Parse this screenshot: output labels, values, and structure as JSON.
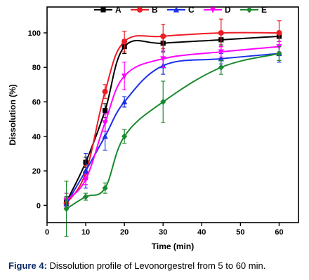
{
  "chart_data": {
    "type": "line",
    "xlabel": "Time (min)",
    "ylabel": "Dissolution (%)",
    "xlim": [
      0,
      65
    ],
    "ylim": [
      -10,
      115
    ],
    "xticks": [
      0,
      10,
      20,
      30,
      40,
      50,
      60
    ],
    "yticks": [
      0,
      20,
      40,
      60,
      80,
      100
    ],
    "x": [
      5,
      10,
      15,
      20,
      30,
      45,
      60
    ],
    "legend_position": "top",
    "series": [
      {
        "name": "A",
        "color": "#000000",
        "marker": "square",
        "values": [
          2,
          25,
          55,
          92,
          94,
          96,
          98
        ],
        "errors": [
          3,
          3,
          4,
          4,
          5,
          3,
          3
        ]
      },
      {
        "name": "B",
        "color": "#ee1c25",
        "marker": "circle",
        "values": [
          1,
          19,
          66,
          95,
          98,
          100,
          100
        ],
        "errors": [
          3,
          4,
          4,
          6,
          7,
          8,
          7
        ]
      },
      {
        "name": "C",
        "color": "#1a2fe8",
        "marker": "triangle",
        "values": [
          1,
          20,
          40,
          60,
          81,
          85,
          88
        ],
        "errors": [
          3,
          10,
          8,
          3,
          5,
          3,
          5
        ]
      },
      {
        "name": "D",
        "color": "#ff00ff",
        "marker": "triangle-down",
        "values": [
          3,
          15,
          48,
          75,
          85,
          89,
          92
        ],
        "errors": [
          4,
          3,
          5,
          8,
          5,
          3,
          3
        ]
      },
      {
        "name": "E",
        "color": "#1a8a2e",
        "marker": "diamond",
        "values": [
          -2,
          5,
          10,
          40,
          60,
          80,
          88
        ],
        "errors": [
          16,
          2,
          3,
          4,
          12,
          4,
          4
        ]
      }
    ]
  },
  "caption": {
    "label": "Figure 4:",
    "text": " Dissolution profile of Levonorgestrel from 5 to 60 min."
  }
}
